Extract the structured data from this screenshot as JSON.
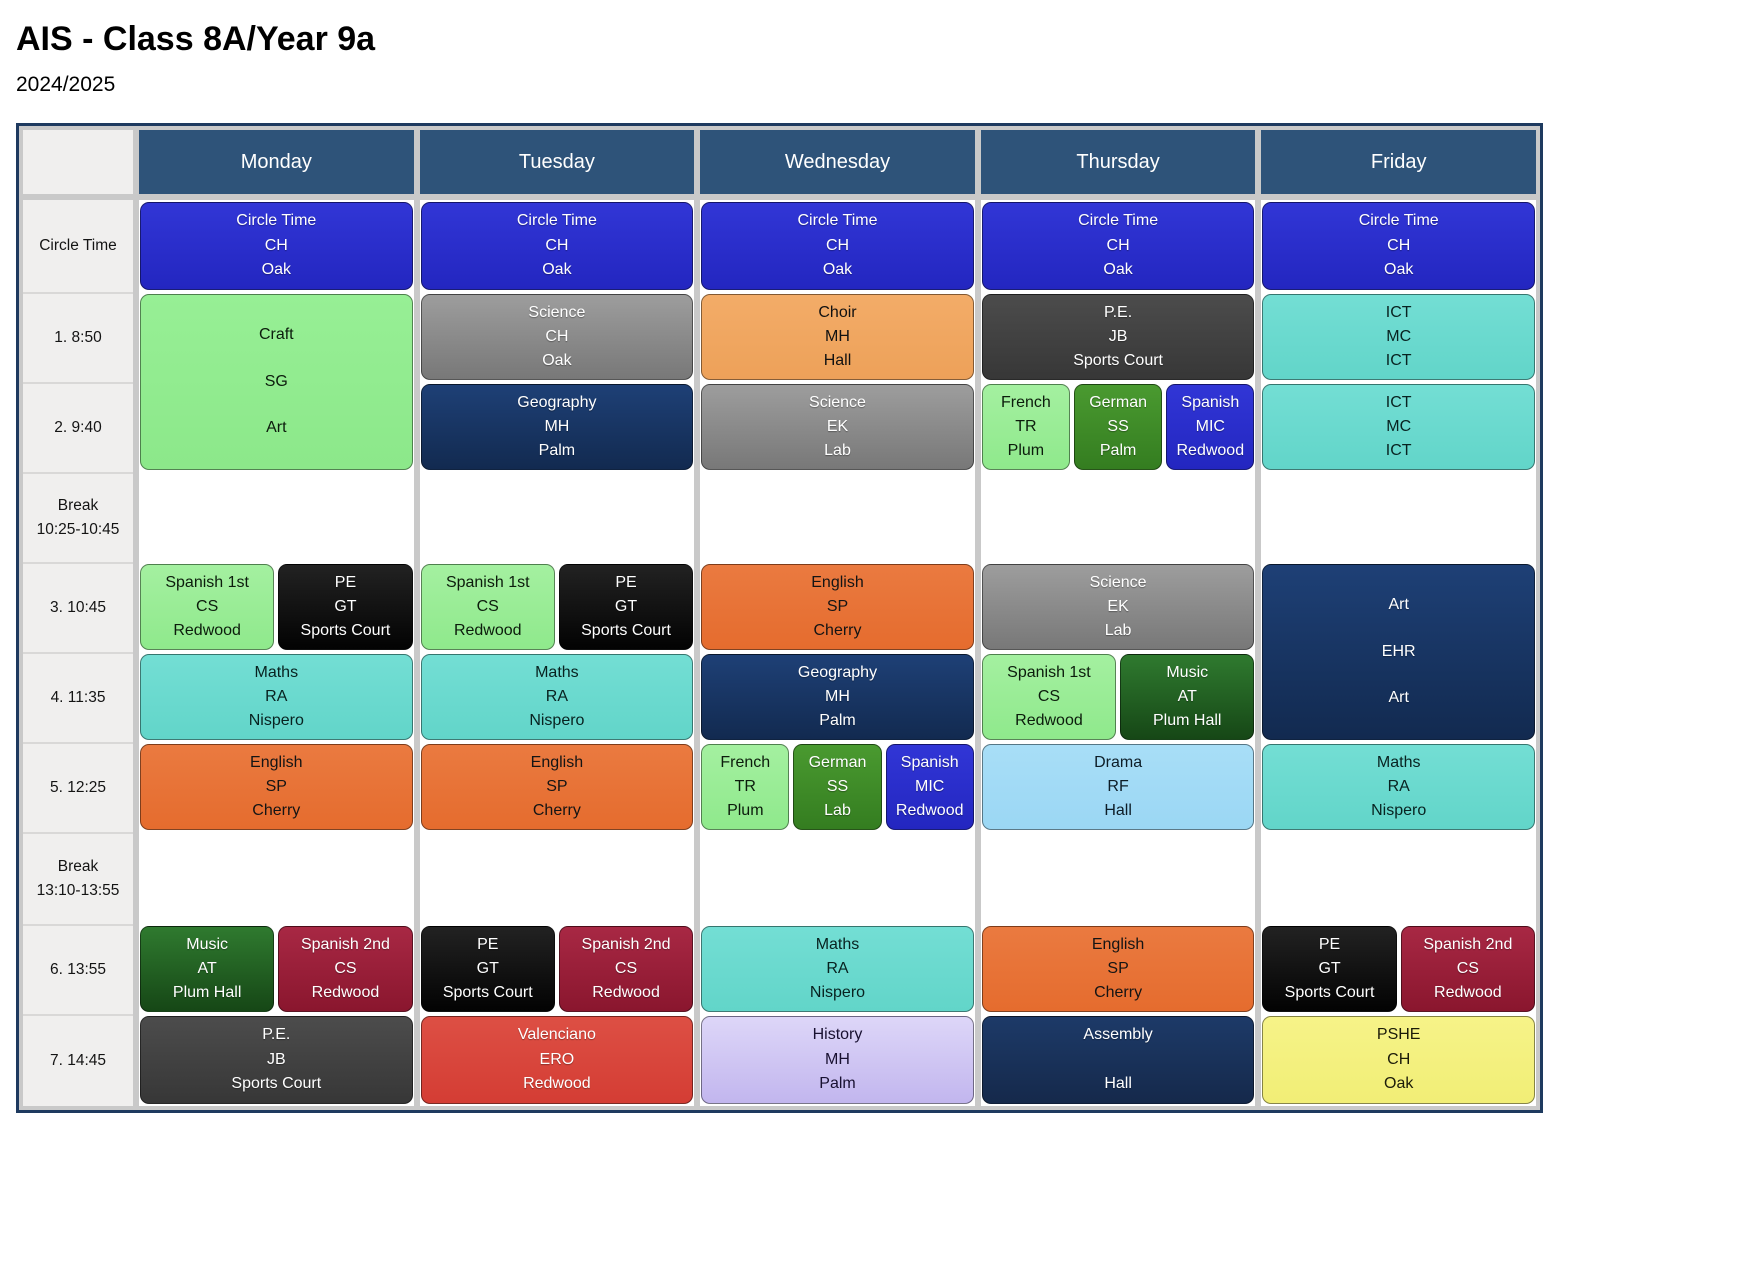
{
  "page": {
    "title": "AIS - Class 8A/Year 9a",
    "subtitle": "2024/2025"
  },
  "days": [
    "Monday",
    "Tuesday",
    "Wednesday",
    "Thursday",
    "Friday"
  ],
  "rows": [
    {
      "lines": [
        "Circle Time"
      ]
    },
    {
      "lines": [
        "1. 8:50"
      ]
    },
    {
      "lines": [
        "2. 9:40"
      ]
    },
    {
      "lines": [
        "Break",
        "10:25-10:45"
      ]
    },
    {
      "lines": [
        "3. 10:45"
      ]
    },
    {
      "lines": [
        "4. 11:35"
      ]
    },
    {
      "lines": [
        "5. 12:25"
      ]
    },
    {
      "lines": [
        "Break",
        "13:10-13:55"
      ]
    },
    {
      "lines": [
        "6. 13:55"
      ]
    },
    {
      "lines": [
        "7. 14:45"
      ]
    }
  ],
  "colors": {
    "header_bg": "#2e5379",
    "header_text": "#ffffff",
    "time_col_bg": "#f0efee",
    "gutter": "#c9c9c9",
    "frame_border": "#1e3a5f",
    "palette": {
      "circle": {
        "top": "#3136d6",
        "bottom": "#2326c0",
        "text": "#ffffff"
      },
      "lightgreen": {
        "top": "#97ef95",
        "bottom": "#8ce88a",
        "text": "#0c1c0c"
      },
      "lightgreen2": {
        "top": "#a4f0a0",
        "bottom": "#8fe98c",
        "text": "#0c1c0c"
      },
      "gray": {
        "top": "#9d9d9d",
        "bottom": "#787878",
        "text": "#ffffff"
      },
      "tan": {
        "top": "#f3ac68",
        "bottom": "#eda159",
        "text": "#111111"
      },
      "charcoal": {
        "top": "#4c4c4c",
        "bottom": "#373737",
        "text": "#ffffff"
      },
      "navy": {
        "top": "#1e4076",
        "bottom": "#122a50",
        "text": "#ffffff"
      },
      "turquoise": {
        "top": "#73ded4",
        "bottom": "#62d5c9",
        "text": "#082220"
      },
      "black": {
        "top": "#222222",
        "bottom": "#030303",
        "text": "#ffffff"
      },
      "orange": {
        "top": "#ea7a40",
        "bottom": "#e56c2e",
        "text": "#141414"
      },
      "green": {
        "top": "#4a9a30",
        "bottom": "#347d20",
        "text": "#ffffff"
      },
      "blue": {
        "top": "#3136d6",
        "bottom": "#2326c0",
        "text": "#ffffff"
      },
      "darkgreen": {
        "top": "#2f7a2f",
        "bottom": "#164716",
        "text": "#ffffff"
      },
      "maroon": {
        "top": "#a82844",
        "bottom": "#8a162e",
        "text": "#ffffff"
      },
      "lightblue": {
        "top": "#a8def7",
        "bottom": "#9bd7f4",
        "text": "#0d1d27"
      },
      "red": {
        "top": "#dd4f44",
        "bottom": "#d43d34",
        "text": "#ffffff"
      },
      "lavender": {
        "top": "#ddd6f8",
        "bottom": "#c2b6ee",
        "text": "#181030"
      },
      "navy2": {
        "top": "#1d3a68",
        "bottom": "#15294b",
        "text": "#ffffff"
      },
      "yellow": {
        "top": "#f6f388",
        "bottom": "#f1ee76",
        "text": "#1b1b09"
      }
    }
  },
  "cells": [
    {
      "day": 0,
      "row": 0,
      "span": 1,
      "blocks": [
        {
          "color": "circle",
          "lines": [
            "Circle Time",
            "CH",
            "Oak"
          ]
        }
      ]
    },
    {
      "day": 1,
      "row": 0,
      "span": 1,
      "blocks": [
        {
          "color": "circle",
          "lines": [
            "Circle Time",
            "CH",
            "Oak"
          ]
        }
      ]
    },
    {
      "day": 2,
      "row": 0,
      "span": 1,
      "blocks": [
        {
          "color": "circle",
          "lines": [
            "Circle Time",
            "CH",
            "Oak"
          ]
        }
      ]
    },
    {
      "day": 3,
      "row": 0,
      "span": 1,
      "blocks": [
        {
          "color": "circle",
          "lines": [
            "Circle Time",
            "CH",
            "Oak"
          ]
        }
      ]
    },
    {
      "day": 4,
      "row": 0,
      "span": 1,
      "blocks": [
        {
          "color": "circle",
          "lines": [
            "Circle Time",
            "CH",
            "Oak"
          ]
        }
      ]
    },
    {
      "day": 0,
      "row": 1,
      "span": 2,
      "blocks": [
        {
          "color": "lightgreen",
          "lines": [
            "Craft",
            "SG",
            "Art"
          ]
        }
      ]
    },
    {
      "day": 1,
      "row": 1,
      "span": 1,
      "blocks": [
        {
          "color": "gray",
          "lines": [
            "Science",
            "CH",
            "Oak"
          ]
        }
      ]
    },
    {
      "day": 2,
      "row": 1,
      "span": 1,
      "blocks": [
        {
          "color": "tan",
          "lines": [
            "Choir",
            "MH",
            "Hall"
          ]
        }
      ]
    },
    {
      "day": 3,
      "row": 1,
      "span": 1,
      "blocks": [
        {
          "color": "charcoal",
          "lines": [
            "P.E.",
            "JB",
            "Sports Court"
          ]
        }
      ]
    },
    {
      "day": 4,
      "row": 1,
      "span": 1,
      "blocks": [
        {
          "color": "turquoise",
          "lines": [
            "ICT",
            "MC",
            "ICT"
          ]
        }
      ]
    },
    {
      "day": 1,
      "row": 2,
      "span": 1,
      "blocks": [
        {
          "color": "navy",
          "lines": [
            "Geography",
            "MH",
            "Palm"
          ]
        }
      ]
    },
    {
      "day": 2,
      "row": 2,
      "span": 1,
      "blocks": [
        {
          "color": "gray",
          "lines": [
            "Science",
            "EK",
            "Lab"
          ]
        }
      ]
    },
    {
      "day": 3,
      "row": 2,
      "span": 1,
      "blocks": [
        {
          "color": "lightgreen2",
          "lines": [
            "French",
            "TR",
            "Plum"
          ]
        },
        {
          "color": "green",
          "lines": [
            "German",
            "SS",
            "Palm"
          ]
        },
        {
          "color": "blue",
          "lines": [
            "Spanish",
            "MIC",
            "Redwood"
          ]
        }
      ]
    },
    {
      "day": 4,
      "row": 2,
      "span": 1,
      "blocks": [
        {
          "color": "turquoise",
          "lines": [
            "ICT",
            "MC",
            "ICT"
          ]
        }
      ]
    },
    {
      "day": 0,
      "row": 4,
      "span": 1,
      "blocks": [
        {
          "color": "lightgreen2",
          "lines": [
            "Spanish 1st",
            "CS",
            "Redwood"
          ]
        },
        {
          "color": "black",
          "lines": [
            "PE",
            "GT",
            "Sports Court"
          ]
        }
      ]
    },
    {
      "day": 1,
      "row": 4,
      "span": 1,
      "blocks": [
        {
          "color": "lightgreen2",
          "lines": [
            "Spanish 1st",
            "CS",
            "Redwood"
          ]
        },
        {
          "color": "black",
          "lines": [
            "PE",
            "GT",
            "Sports Court"
          ]
        }
      ]
    },
    {
      "day": 2,
      "row": 4,
      "span": 1,
      "blocks": [
        {
          "color": "orange",
          "lines": [
            "English",
            "SP",
            "Cherry"
          ]
        }
      ]
    },
    {
      "day": 3,
      "row": 4,
      "span": 1,
      "blocks": [
        {
          "color": "gray",
          "lines": [
            "Science",
            "EK",
            "Lab"
          ]
        }
      ]
    },
    {
      "day": 4,
      "row": 4,
      "span": 2,
      "blocks": [
        {
          "color": "navy",
          "lines": [
            "Art",
            "EHR",
            "Art"
          ]
        }
      ]
    },
    {
      "day": 0,
      "row": 5,
      "span": 1,
      "blocks": [
        {
          "color": "turquoise",
          "lines": [
            "Maths",
            "RA",
            "Nispero"
          ]
        }
      ]
    },
    {
      "day": 1,
      "row": 5,
      "span": 1,
      "blocks": [
        {
          "color": "turquoise",
          "lines": [
            "Maths",
            "RA",
            "Nispero"
          ]
        }
      ]
    },
    {
      "day": 2,
      "row": 5,
      "span": 1,
      "blocks": [
        {
          "color": "navy",
          "lines": [
            "Geography",
            "MH",
            "Palm"
          ]
        }
      ]
    },
    {
      "day": 3,
      "row": 5,
      "span": 1,
      "blocks": [
        {
          "color": "lightgreen2",
          "lines": [
            "Spanish 1st",
            "CS",
            "Redwood"
          ]
        },
        {
          "color": "darkgreen",
          "lines": [
            "Music",
            "AT",
            "Plum Hall"
          ]
        }
      ]
    },
    {
      "day": 0,
      "row": 6,
      "span": 1,
      "blocks": [
        {
          "color": "orange",
          "lines": [
            "English",
            "SP",
            "Cherry"
          ]
        }
      ]
    },
    {
      "day": 1,
      "row": 6,
      "span": 1,
      "blocks": [
        {
          "color": "orange",
          "lines": [
            "English",
            "SP",
            "Cherry"
          ]
        }
      ]
    },
    {
      "day": 2,
      "row": 6,
      "span": 1,
      "blocks": [
        {
          "color": "lightgreen2",
          "lines": [
            "French",
            "TR",
            "Plum"
          ]
        },
        {
          "color": "green",
          "lines": [
            "German",
            "SS",
            "Lab"
          ]
        },
        {
          "color": "blue",
          "lines": [
            "Spanish",
            "MIC",
            "Redwood"
          ]
        }
      ]
    },
    {
      "day": 3,
      "row": 6,
      "span": 1,
      "blocks": [
        {
          "color": "lightblue",
          "lines": [
            "Drama",
            "RF",
            "Hall"
          ]
        }
      ]
    },
    {
      "day": 4,
      "row": 6,
      "span": 1,
      "blocks": [
        {
          "color": "turquoise",
          "lines": [
            "Maths",
            "RA",
            "Nispero"
          ]
        }
      ]
    },
    {
      "day": 0,
      "row": 8,
      "span": 1,
      "blocks": [
        {
          "color": "darkgreen",
          "lines": [
            "Music",
            "AT",
            "Plum Hall"
          ]
        },
        {
          "color": "maroon",
          "lines": [
            "Spanish 2nd",
            "CS",
            "Redwood"
          ]
        }
      ]
    },
    {
      "day": 1,
      "row": 8,
      "span": 1,
      "blocks": [
        {
          "color": "black",
          "lines": [
            "PE",
            "GT",
            "Sports Court"
          ]
        },
        {
          "color": "maroon",
          "lines": [
            "Spanish 2nd",
            "CS",
            "Redwood"
          ]
        }
      ]
    },
    {
      "day": 2,
      "row": 8,
      "span": 1,
      "blocks": [
        {
          "color": "turquoise",
          "lines": [
            "Maths",
            "RA",
            "Nispero"
          ]
        }
      ]
    },
    {
      "day": 3,
      "row": 8,
      "span": 1,
      "blocks": [
        {
          "color": "orange",
          "lines": [
            "English",
            "SP",
            "Cherry"
          ]
        }
      ]
    },
    {
      "day": 4,
      "row": 8,
      "span": 1,
      "blocks": [
        {
          "color": "black",
          "lines": [
            "PE",
            "GT",
            "Sports Court"
          ]
        },
        {
          "color": "maroon",
          "lines": [
            "Spanish 2nd",
            "CS",
            "Redwood"
          ]
        }
      ]
    },
    {
      "day": 0,
      "row": 9,
      "span": 1,
      "blocks": [
        {
          "color": "charcoal",
          "lines": [
            "P.E.",
            "JB",
            "Sports Court"
          ]
        }
      ]
    },
    {
      "day": 1,
      "row": 9,
      "span": 1,
      "blocks": [
        {
          "color": "red",
          "lines": [
            "Valenciano",
            "ERO",
            "Redwood"
          ]
        }
      ]
    },
    {
      "day": 2,
      "row": 9,
      "span": 1,
      "blocks": [
        {
          "color": "lavender",
          "lines": [
            "History",
            "MH",
            "Palm"
          ]
        }
      ]
    },
    {
      "day": 3,
      "row": 9,
      "span": 1,
      "blocks": [
        {
          "color": "navy2",
          "lines": [
            "Assembly",
            "",
            "Hall"
          ]
        }
      ]
    },
    {
      "day": 4,
      "row": 9,
      "span": 1,
      "blocks": [
        {
          "color": "yellow",
          "lines": [
            "PSHE",
            "CH",
            "Oak"
          ]
        }
      ]
    }
  ]
}
